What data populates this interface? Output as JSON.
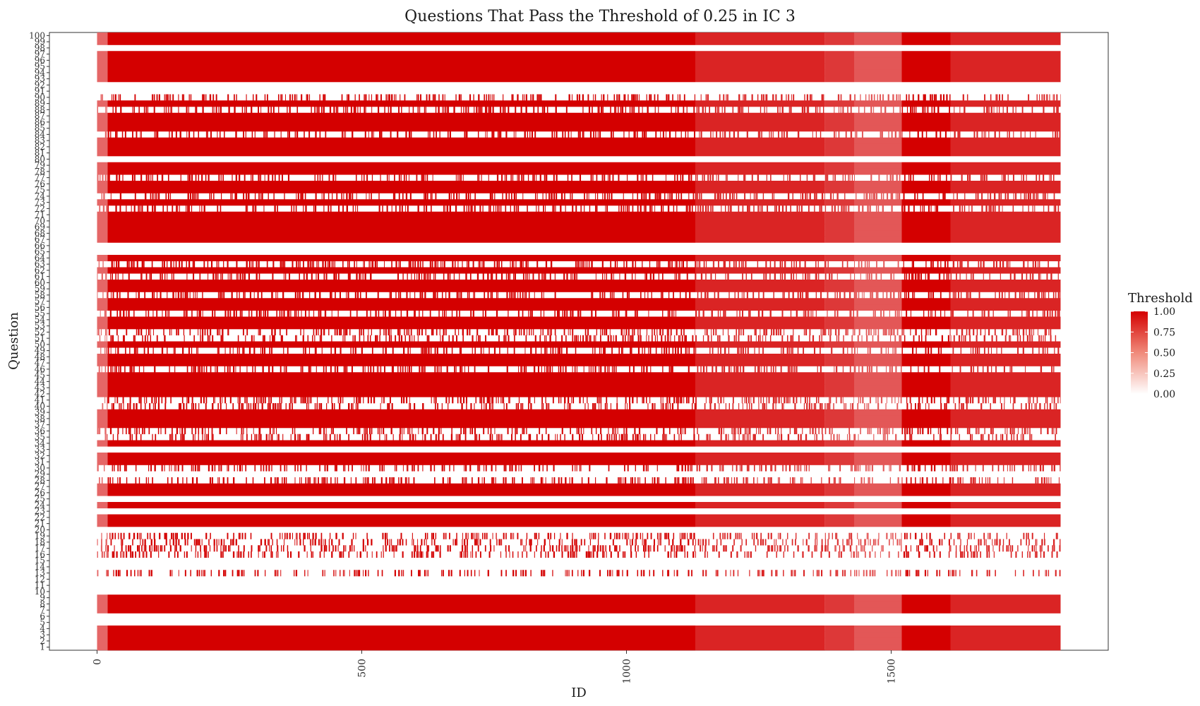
{
  "chart_data": {
    "type": "heatmap",
    "title": "Questions That Pass the Threshold of 0.25 in IC 3",
    "xlabel": "ID",
    "ylabel": "Question",
    "xlim": [
      -90,
      1910
    ],
    "ylim": [
      0.5,
      100.5
    ],
    "x_ticks": [
      0,
      500,
      1000,
      1500
    ],
    "x_tick_labels": [
      "0",
      "500",
      "1000",
      "1500"
    ],
    "y_tick_labels": [
      "1",
      "2",
      "3",
      "4",
      "5",
      "6",
      "7",
      "8",
      "9",
      "10",
      "11",
      "12",
      "13",
      "14",
      "15",
      "16",
      "17",
      "18",
      "19",
      "20",
      "21",
      "22",
      "23",
      "24",
      "25",
      "26",
      "27",
      "28",
      "29",
      "30",
      "31",
      "32",
      "33",
      "34",
      "35",
      "36",
      "37",
      "38",
      "39",
      "40",
      "41",
      "42",
      "43",
      "44",
      "45",
      "46",
      "47",
      "48",
      "49",
      "50",
      "51",
      "52",
      "53",
      "54",
      "55",
      "56",
      "57",
      "58",
      "59",
      "60",
      "61",
      "62",
      "63",
      "64",
      "65",
      "66",
      "67",
      "68",
      "69",
      "70",
      "71",
      "72",
      "73",
      "74",
      "75",
      "76",
      "77",
      "78",
      "79",
      "80",
      "81",
      "82",
      "83",
      "84",
      "85",
      "86",
      "87",
      "88",
      "89",
      "90",
      "91",
      "92",
      "93",
      "94",
      "95",
      "96",
      "97",
      "98",
      "99",
      "100"
    ],
    "id_range": [
      0,
      1820
    ],
    "id_segments": [
      {
        "from": 0,
        "to": 20,
        "threshold": 0.6
      },
      {
        "from": 20,
        "to": 1130,
        "threshold": 1.0
      },
      {
        "from": 1130,
        "to": 1375,
        "threshold": 0.86
      },
      {
        "from": 1375,
        "to": 1430,
        "threshold": 0.78
      },
      {
        "from": 1430,
        "to": 1520,
        "threshold": 0.66
      },
      {
        "from": 1520,
        "to": 1612,
        "threshold": 1.0
      },
      {
        "from": 1612,
        "to": 1820,
        "threshold": 0.86
      }
    ],
    "question_pass_pattern": {
      "solid": [
        1,
        2,
        3,
        4,
        7,
        8,
        9,
        21,
        22,
        24,
        26,
        27,
        31,
        32,
        34,
        37,
        38,
        39,
        42,
        43,
        44,
        45,
        47,
        48,
        50,
        53,
        54,
        56,
        57,
        59,
        60,
        62,
        64,
        67,
        68,
        69,
        70,
        71,
        73,
        75,
        76,
        78,
        79,
        81,
        82,
        83,
        85,
        86,
        87,
        89,
        93,
        94,
        95,
        96,
        97,
        99,
        100
      ],
      "sparse": [
        13,
        16,
        17,
        18,
        19,
        28,
        30,
        35,
        36,
        40,
        41,
        46,
        49,
        51,
        52,
        55,
        58,
        61,
        63,
        72,
        74,
        77,
        84,
        88,
        90
      ]
    },
    "legend": {
      "title": "Threshold",
      "ticks": [
        "1.00",
        "0.75",
        "0.50",
        "0.25",
        "0.00"
      ],
      "colors": {
        "high": "#d40000",
        "low": "#ffffff"
      },
      "position": "right"
    }
  }
}
